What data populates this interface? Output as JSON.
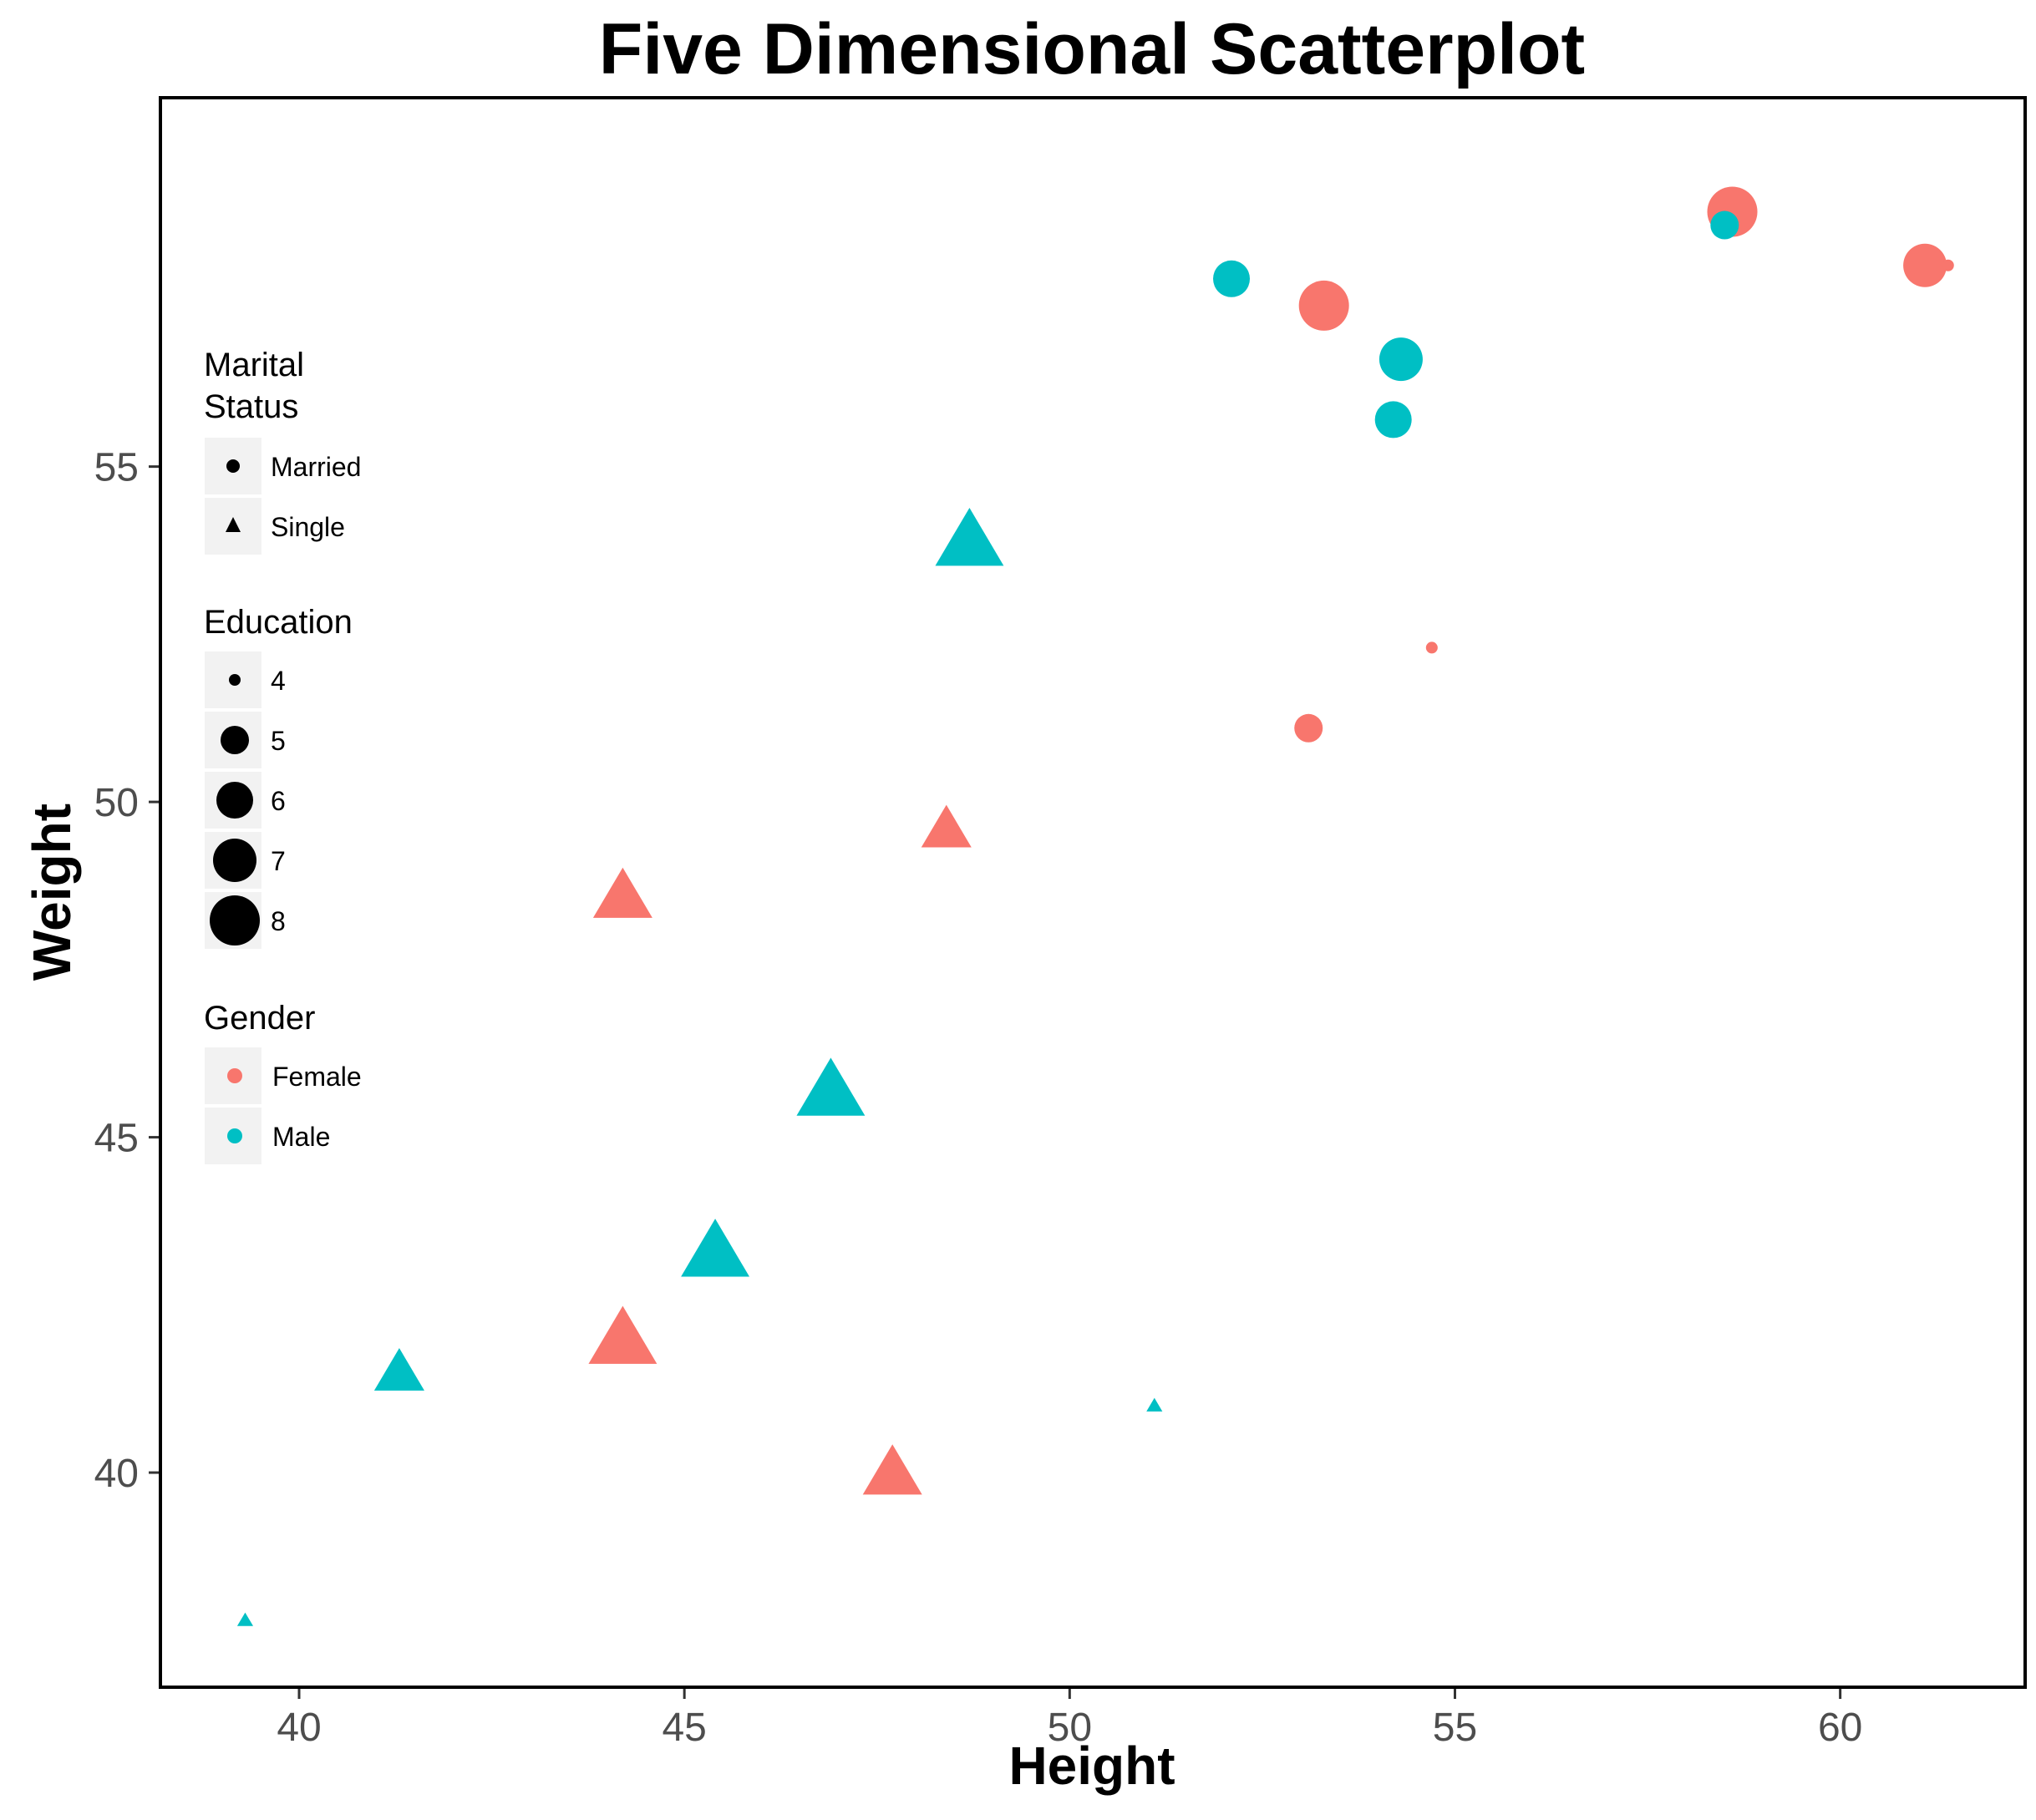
{
  "chart_data": {
    "type": "scatter",
    "title": "Five Dimensional Scatterplot",
    "xlabel": "Height",
    "ylabel": "Weight",
    "xlim": [
      38.2,
      62.4
    ],
    "ylim": [
      36.8,
      60.5
    ],
    "x_ticks": [
      40,
      45,
      50,
      55,
      60
    ],
    "y_ticks": [
      40,
      45,
      50,
      55
    ],
    "grid": false,
    "colors": {
      "Female": "#F8766D",
      "Male": "#00BFC4"
    },
    "legend": {
      "placement": "left-inside",
      "shape": {
        "title": "Marital\nStatus",
        "title_lines": [
          "Marital",
          "Status"
        ],
        "items": [
          "Married",
          "Single"
        ]
      },
      "size": {
        "title": "Education",
        "items": [
          4,
          5,
          6,
          7,
          8
        ]
      },
      "color": {
        "title": "Gender",
        "items": [
          "Female",
          "Male"
        ]
      }
    },
    "points": [
      {
        "height": 58.6,
        "weight": 58.8,
        "gender": "Female",
        "marital": "Married",
        "education": 8
      },
      {
        "height": 58.5,
        "weight": 58.6,
        "gender": "Male",
        "marital": "Married",
        "education": 5
      },
      {
        "height": 61.1,
        "weight": 58.0,
        "gender": "Female",
        "marital": "Married",
        "education": 7
      },
      {
        "height": 61.4,
        "weight": 58.0,
        "gender": "Female",
        "marital": "Married",
        "education": 4
      },
      {
        "height": 52.1,
        "weight": 57.8,
        "gender": "Male",
        "marital": "Married",
        "education": 6
      },
      {
        "height": 53.3,
        "weight": 57.4,
        "gender": "Female",
        "marital": "Married",
        "education": 8
      },
      {
        "height": 54.3,
        "weight": 56.6,
        "gender": "Male",
        "marital": "Married",
        "education": 7
      },
      {
        "height": 54.2,
        "weight": 55.7,
        "gender": "Male",
        "marital": "Married",
        "education": 6
      },
      {
        "height": 48.7,
        "weight": 53.9,
        "gender": "Male",
        "marital": "Single",
        "education": 8
      },
      {
        "height": 54.7,
        "weight": 52.3,
        "gender": "Female",
        "marital": "Married",
        "education": 4
      },
      {
        "height": 53.1,
        "weight": 51.1,
        "gender": "Female",
        "marital": "Married",
        "education": 5
      },
      {
        "height": 48.4,
        "weight": 49.6,
        "gender": "Female",
        "marital": "Single",
        "education": 6
      },
      {
        "height": 44.2,
        "weight": 48.6,
        "gender": "Female",
        "marital": "Single",
        "education": 7
      },
      {
        "height": 46.9,
        "weight": 45.7,
        "gender": "Male",
        "marital": "Single",
        "education": 8
      },
      {
        "height": 45.4,
        "weight": 43.3,
        "gender": "Male",
        "marital": "Single",
        "education": 8
      },
      {
        "height": 44.2,
        "weight": 42.0,
        "gender": "Female",
        "marital": "Single",
        "education": 8
      },
      {
        "height": 41.3,
        "weight": 41.5,
        "gender": "Male",
        "marital": "Single",
        "education": 6
      },
      {
        "height": 51.1,
        "weight": 41.0,
        "gender": "Male",
        "marital": "Single",
        "education": 4
      },
      {
        "height": 47.7,
        "weight": 40.0,
        "gender": "Female",
        "marital": "Single",
        "education": 7
      },
      {
        "height": 39.3,
        "weight": 37.8,
        "gender": "Male",
        "marital": "Single",
        "education": 4
      }
    ]
  }
}
